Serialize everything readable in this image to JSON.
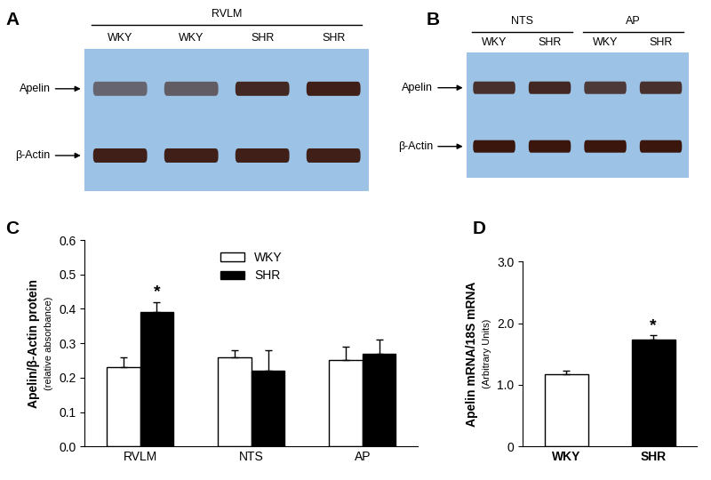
{
  "panels": [
    {
      "panel": "A",
      "groups": [
        {
          "label": "RVLM",
          "lanes": [
            0,
            1,
            2,
            3
          ]
        }
      ],
      "lanes": [
        "WKY",
        "WKY",
        "SHR",
        "SHR"
      ],
      "bands": [
        {
          "label": "Apelin",
          "intensity": [
            0.55,
            0.6,
            0.9,
            0.95
          ]
        },
        {
          "label": "β-Actin",
          "intensity": [
            0.95,
            0.95,
            0.95,
            0.95
          ]
        }
      ]
    },
    {
      "panel": "B",
      "groups": [
        {
          "label": "NTS",
          "lanes": [
            0,
            1
          ]
        },
        {
          "label": "AP",
          "lanes": [
            2,
            3
          ]
        }
      ],
      "lanes": [
        "WKY",
        "SHR",
        "WKY",
        "SHR"
      ],
      "bands": [
        {
          "label": "Apelin",
          "intensity": [
            0.85,
            0.9,
            0.8,
            0.85
          ]
        },
        {
          "label": "β-Actin",
          "intensity": [
            1.0,
            1.0,
            1.0,
            1.0
          ]
        }
      ]
    }
  ],
  "chart_data": [
    {
      "panel": "C",
      "type": "bar",
      "categories": [
        "RVLM",
        "NTS",
        "AP"
      ],
      "y_label": "Apelin/β-Actin protein",
      "y_label_note": "(relative absorbance)",
      "series": [
        {
          "name": "WKY",
          "color": "#ffffff",
          "values": [
            0.23,
            0.26,
            0.25
          ],
          "errors": [
            0.03,
            0.02,
            0.04
          ]
        },
        {
          "name": "SHR",
          "color": "#000000",
          "values": [
            0.39,
            0.22,
            0.27
          ],
          "errors": [
            0.03,
            0.06,
            0.04
          ]
        }
      ],
      "ylim": [
        0,
        0.6
      ],
      "yticks": [
        {
          "value": 0,
          "label": "0.0"
        },
        {
          "value": 0.1,
          "label": "0.1"
        },
        {
          "value": 0.2,
          "label": "0.2"
        },
        {
          "value": 0.3,
          "label": "0.3"
        },
        {
          "value": 0.4,
          "label": "0.4"
        },
        {
          "value": 0.5,
          "label": "0.5"
        },
        {
          "value": 0.6,
          "label": "0.6"
        }
      ],
      "legend": "upper center",
      "annotations": [
        {
          "text": "*",
          "category": "RVLM",
          "series": "SHR"
        }
      ]
    },
    {
      "panel": "D",
      "type": "bar",
      "categories": [
        "WKY",
        "SHR"
      ],
      "values": [
        1.17,
        1.74
      ],
      "errors": [
        0.06,
        0.06
      ],
      "colors": [
        "#ffffff",
        "#000000"
      ],
      "y_label": "Apelin mRNA/18S mRNA",
      "y_label_note": "(Arbitrary Units)",
      "ylim": [
        0,
        3.0
      ],
      "yticks": [
        0,
        {
          "value": 1,
          "label": "1.0"
        },
        {
          "value": 2,
          "label": "2.0"
        },
        {
          "value": 3,
          "label": "3.0"
        }
      ],
      "annotations": [
        {
          "text": "*",
          "category": "SHR"
        }
      ]
    }
  ]
}
